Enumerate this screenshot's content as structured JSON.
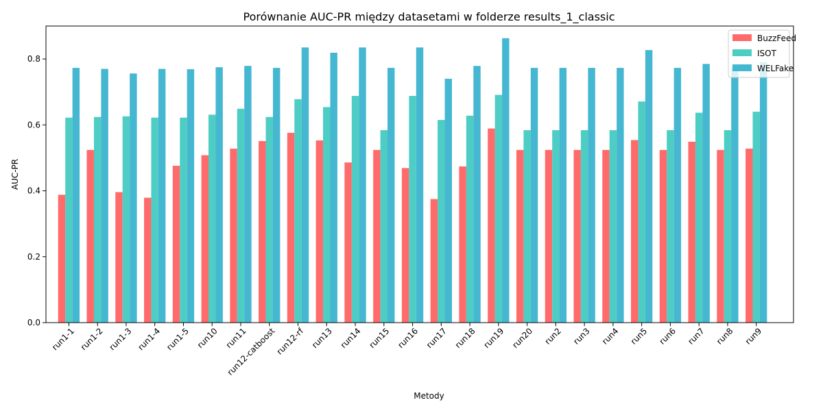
{
  "chart_data": {
    "type": "bar",
    "title": "Porównanie AUC-PR między datasetami w folderze results_1_classic",
    "xlabel": "Metody",
    "ylabel": "AUC-PR",
    "ylim": [
      0,
      0.9
    ],
    "yticks": [
      "0.0",
      "0.2",
      "0.4",
      "0.6",
      "0.8"
    ],
    "grid": false,
    "legend_position": "top-right",
    "categories": [
      "run1-1",
      "run1-2",
      "run1-3",
      "run1-4",
      "run1-5",
      "run10",
      "run11",
      "run12-catboost",
      "run12-rf",
      "run13",
      "run14",
      "run15",
      "run16",
      "run17",
      "run18",
      "run19",
      "run20",
      "run2",
      "run3",
      "run4",
      "run5",
      "run6",
      "run7",
      "run8",
      "run9"
    ],
    "series": [
      {
        "name": "BuzzFeed",
        "color": "#ff6b6b",
        "values": [
          0.388,
          0.524,
          0.396,
          0.379,
          0.476,
          0.508,
          0.528,
          0.551,
          0.576,
          0.553,
          0.486,
          0.524,
          0.469,
          0.375,
          0.474,
          0.589,
          0.524,
          0.524,
          0.524,
          0.524,
          0.554,
          0.524,
          0.549,
          0.524,
          0.528
        ]
      },
      {
        "name": "ISOT",
        "color": "#4ecdc4",
        "values": [
          0.622,
          0.624,
          0.626,
          0.622,
          0.622,
          0.631,
          0.649,
          0.624,
          0.678,
          0.654,
          0.688,
          0.584,
          0.688,
          0.615,
          0.628,
          0.691,
          0.584,
          0.584,
          0.584,
          0.584,
          0.671,
          0.584,
          0.637,
          0.584,
          0.64
        ]
      },
      {
        "name": "WELFake",
        "color": "#45b7d1",
        "values": [
          0.773,
          0.77,
          0.756,
          0.77,
          0.769,
          0.775,
          0.779,
          0.773,
          0.835,
          0.819,
          0.835,
          0.773,
          0.835,
          0.74,
          0.779,
          0.863,
          0.773,
          0.773,
          0.773,
          0.773,
          0.827,
          0.773,
          0.785,
          0.773,
          0.79
        ]
      }
    ]
  }
}
